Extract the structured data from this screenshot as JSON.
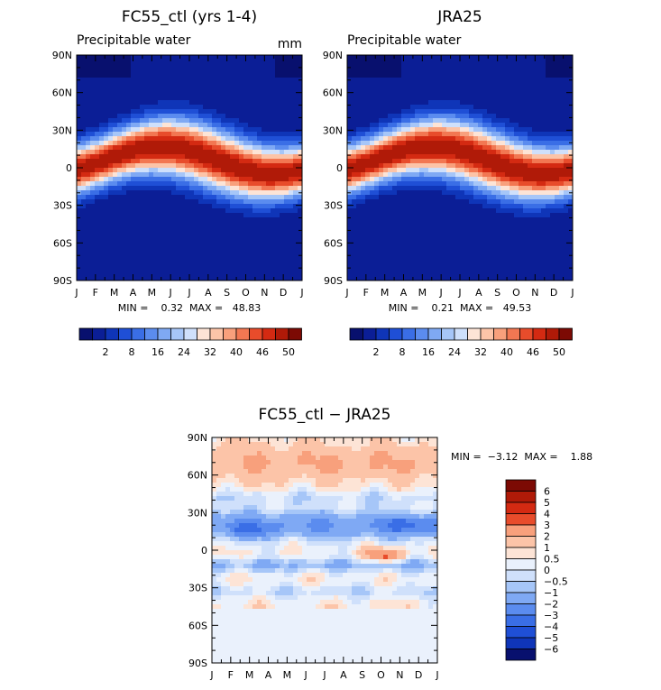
{
  "chart_data": [
    {
      "type": "heatmap",
      "title": "FC55_ctl (yrs 1-4)",
      "subtitle": "Precipitable water",
      "units": "mm",
      "x_ticks": [
        "J",
        "F",
        "M",
        "A",
        "M",
        "J",
        "J",
        "A",
        "S",
        "O",
        "N",
        "D",
        "J"
      ],
      "y_ticks": [
        "90N",
        "60N",
        "30N",
        "0",
        "30S",
        "60S",
        "90S"
      ],
      "stats_text": "MIN =    0.32  MAX =   48.83",
      "min": 0.32,
      "max": 48.83,
      "colorbar_labels": [
        "2",
        "8",
        "16",
        "24",
        "32",
        "40",
        "46",
        "50"
      ]
    },
    {
      "type": "heatmap",
      "title": "JRA25",
      "subtitle": "Precipitable water",
      "x_ticks": [
        "J",
        "F",
        "M",
        "A",
        "M",
        "J",
        "J",
        "A",
        "S",
        "O",
        "N",
        "D",
        "J"
      ],
      "y_ticks": [
        "90N",
        "60N",
        "30N",
        "0",
        "30S",
        "60S",
        "90S"
      ],
      "stats_text": "MIN =    0.21  MAX =   49.53",
      "min": 0.21,
      "max": 49.53,
      "colorbar_labels": [
        "2",
        "8",
        "16",
        "24",
        "32",
        "40",
        "46",
        "50"
      ]
    },
    {
      "type": "heatmap",
      "title": "FC55_ctl − JRA25",
      "x_ticks": [
        "J",
        "F",
        "M",
        "A",
        "M",
        "J",
        "J",
        "A",
        "S",
        "O",
        "N",
        "D",
        "J"
      ],
      "y_ticks": [
        "90N",
        "60N",
        "30N",
        "0",
        "30S",
        "60S",
        "90S"
      ],
      "stats_text": "MIN =  −3.12  MAX =    1.88",
      "min": -3.12,
      "max": 1.88,
      "colorbar_labels": [
        "6",
        "5",
        "4",
        "3",
        "2",
        "1",
        "0.5",
        "0",
        "−0.5",
        "−1",
        "−2",
        "−3",
        "−4",
        "−5",
        "−6"
      ]
    }
  ],
  "palettes": {
    "absolute": [
      "#08106e",
      "#0b1e96",
      "#0f35b8",
      "#1f4fd6",
      "#3a6ee6",
      "#5b8cef",
      "#7fa9f4",
      "#a6c6f8",
      "#cfe0fb",
      "#fde4d6",
      "#fcc4a8",
      "#f8a07c",
      "#f27752",
      "#e84c2b",
      "#d42a12",
      "#b01a08",
      "#7c0a04"
    ],
    "difference": [
      "#7c0a04",
      "#b01a08",
      "#d42a12",
      "#e84c2b",
      "#f8a07c",
      "#fcc4a8",
      "#fde4d6",
      "#eaf1fc",
      "#cfe0fb",
      "#a6c6f8",
      "#7fa9f4",
      "#5b8cef",
      "#3a6ee6",
      "#1f4fd6",
      "#0f35b8",
      "#08106e"
    ]
  }
}
